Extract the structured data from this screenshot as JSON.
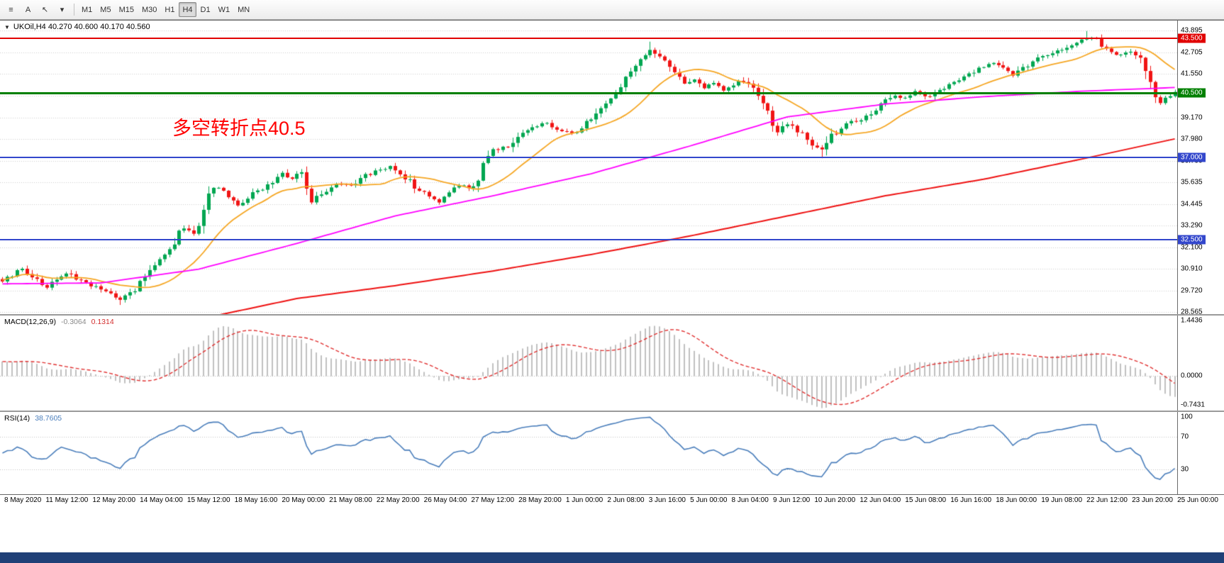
{
  "toolbar": {
    "tools": [
      {
        "name": "line-studies-icon",
        "glyph": "≡"
      },
      {
        "name": "text-tool-button",
        "glyph": "A"
      },
      {
        "name": "cursor-tool-button",
        "glyph": "↖"
      },
      {
        "name": "more-tools-dropdown",
        "glyph": "▾"
      }
    ],
    "timeframes": [
      "M1",
      "M5",
      "M15",
      "M30",
      "H1",
      "H4",
      "D1",
      "W1",
      "MN"
    ],
    "active_timeframe": "H4"
  },
  "chart_data": {
    "type": "candlestick",
    "symbol": "UKOil",
    "timeframe": "H4",
    "title": "UKOil,H4 40.270 40.600 40.170 40.560",
    "ohlc": {
      "open": "40.270",
      "high": "40.600",
      "low": "40.170",
      "close": "40.560"
    },
    "annotation": "多空转折点40.5",
    "num_bars": 240,
    "price_axis": [
      "43.895",
      "42.705",
      "41.550",
      "40.360",
      "39.170",
      "37.980",
      "36.790",
      "35.635",
      "34.445",
      "33.290",
      "32.100",
      "30.910",
      "29.720",
      "28.565"
    ],
    "price_range": [
      28.45,
      44.45
    ],
    "hlines": [
      {
        "label": "43.500",
        "value": 43.5,
        "color": "#e10000",
        "thickness": 2
      },
      {
        "label": "40.500",
        "value": 40.5,
        "color": "#008000",
        "thickness": 3
      },
      {
        "label": "37.000",
        "value": 37.0,
        "color": "#3347cc",
        "thickness": 2
      },
      {
        "label": "32.500",
        "value": 32.5,
        "color": "#3347cc",
        "thickness": 2
      }
    ],
    "close_path": [
      [
        0,
        30.3
      ],
      [
        4,
        30.9
      ],
      [
        9,
        29.9
      ],
      [
        13,
        30.7
      ],
      [
        17,
        30.1
      ],
      [
        22,
        29.6
      ],
      [
        24,
        29.25
      ],
      [
        27,
        29.8
      ],
      [
        30,
        30.8
      ],
      [
        34,
        32.0
      ],
      [
        37,
        33.2
      ],
      [
        39,
        32.9
      ],
      [
        42,
        34.9
      ],
      [
        43,
        35.4
      ],
      [
        46,
        34.9
      ],
      [
        48,
        34.4
      ],
      [
        51,
        35.0
      ],
      [
        53,
        35.3
      ],
      [
        57,
        36.1
      ],
      [
        59,
        35.8
      ],
      [
        61,
        36.2
      ],
      [
        63,
        34.6
      ],
      [
        65,
        35.0
      ],
      [
        68,
        35.6
      ],
      [
        71,
        35.4
      ],
      [
        74,
        36.0
      ],
      [
        77,
        36.3
      ],
      [
        79,
        36.5
      ],
      [
        81,
        36.2
      ],
      [
        84,
        35.4
      ],
      [
        87,
        34.8
      ],
      [
        89,
        34.6
      ],
      [
        91,
        35.2
      ],
      [
        94,
        35.5
      ],
      [
        96,
        35.3
      ],
      [
        98,
        36.5
      ],
      [
        100,
        37.3
      ],
      [
        103,
        37.6
      ],
      [
        105,
        38.2
      ],
      [
        108,
        38.6
      ],
      [
        110,
        38.9
      ],
      [
        113,
        38.5
      ],
      [
        116,
        38.3
      ],
      [
        118,
        38.6
      ],
      [
        121,
        39.3
      ],
      [
        124,
        40.2
      ],
      [
        126,
        40.9
      ],
      [
        129,
        41.9
      ],
      [
        132,
        42.8
      ],
      [
        134,
        42.4
      ],
      [
        137,
        41.6
      ],
      [
        139,
        41.0
      ],
      [
        141,
        41.3
      ],
      [
        143,
        40.8
      ],
      [
        145,
        41.0
      ],
      [
        147,
        40.6
      ],
      [
        150,
        41.2
      ],
      [
        152,
        40.9
      ],
      [
        154,
        40.4
      ],
      [
        156,
        39.3
      ],
      [
        158,
        38.3
      ],
      [
        160,
        38.8
      ],
      [
        163,
        38.2
      ],
      [
        165,
        37.6
      ],
      [
        167,
        37.4
      ],
      [
        169,
        38.2
      ],
      [
        171,
        38.6
      ],
      [
        173,
        38.9
      ],
      [
        176,
        39.2
      ],
      [
        178,
        39.6
      ],
      [
        180,
        40.1
      ],
      [
        182,
        40.4
      ],
      [
        184,
        40.2
      ],
      [
        186,
        40.6
      ],
      [
        189,
        40.3
      ],
      [
        191,
        40.6
      ],
      [
        193,
        40.9
      ],
      [
        195,
        41.2
      ],
      [
        197,
        41.5
      ],
      [
        199,
        41.9
      ],
      [
        202,
        42.1
      ],
      [
        204,
        41.8
      ],
      [
        206,
        41.5
      ],
      [
        208,
        41.9
      ],
      [
        210,
        42.2
      ],
      [
        212,
        42.5
      ],
      [
        215,
        42.8
      ],
      [
        217,
        43.0
      ],
      [
        219,
        43.2
      ],
      [
        221,
        43.5
      ],
      [
        223,
        43.4
      ],
      [
        225,
        42.9
      ],
      [
        227,
        42.6
      ],
      [
        230,
        42.8
      ],
      [
        232,
        42.3
      ],
      [
        234,
        41.0
      ],
      [
        236,
        40.0
      ],
      [
        238,
        40.3
      ],
      [
        239,
        40.56
      ]
    ],
    "spike_highs": [
      [
        132,
        43.3
      ],
      [
        221,
        43.88
      ]
    ],
    "spike_lows": [
      [
        24,
        28.95
      ],
      [
        167,
        36.95
      ],
      [
        236,
        39.85
      ]
    ],
    "ma_orange_period": 16,
    "ma_magenta_path": [
      [
        0,
        30.1
      ],
      [
        20,
        30.15
      ],
      [
        40,
        30.9
      ],
      [
        60,
        32.3
      ],
      [
        80,
        33.8
      ],
      [
        100,
        34.9
      ],
      [
        120,
        36.1
      ],
      [
        140,
        37.6
      ],
      [
        160,
        39.2
      ],
      [
        180,
        39.9
      ],
      [
        200,
        40.3
      ],
      [
        220,
        40.6
      ],
      [
        239,
        40.8
      ]
    ],
    "ma_red_path": [
      [
        30,
        27.6
      ],
      [
        60,
        29.3
      ],
      [
        80,
        30.0
      ],
      [
        100,
        30.8
      ],
      [
        120,
        31.7
      ],
      [
        140,
        32.7
      ],
      [
        160,
        33.8
      ],
      [
        180,
        34.9
      ],
      [
        200,
        35.8
      ],
      [
        220,
        36.9
      ],
      [
        239,
        38.0
      ]
    ],
    "time_labels": [
      "8 May 2020",
      "11 May 12:00",
      "12 May 20:00",
      "14 May 04:00",
      "15 May 12:00",
      "18 May 16:00",
      "20 May 00:00",
      "21 May 08:00",
      "22 May 20:00",
      "26 May 04:00",
      "27 May 12:00",
      "28 May 20:00",
      "1 Jun 00:00",
      "2 Jun 08:00",
      "3 Jun 16:00",
      "5 Jun 00:00",
      "8 Jun 04:00",
      "9 Jun 12:00",
      "10 Jun 20:00",
      "12 Jun 04:00",
      "15 Jun 08:00",
      "16 Jun 16:00",
      "18 Jun 00:00",
      "19 Jun 08:00",
      "22 Jun 12:00",
      "23 Jun 20:00",
      "25 Jun 00:00"
    ],
    "macd": {
      "label": "MACD(12,26,9)",
      "value_main": "-0.3064",
      "value_signal": "0.1314",
      "axis": [
        "1.4436",
        "0.0000",
        "-0.7431"
      ],
      "range": [
        -0.88,
        1.55
      ]
    },
    "rsi": {
      "label": "RSI(14)",
      "value": "38.7605",
      "axis": [
        "100",
        "70",
        "30"
      ],
      "levels": [
        70,
        30
      ],
      "range": [
        0,
        100
      ]
    }
  },
  "colors": {
    "grid": "#cfcfcf",
    "candle_up": "#00a651",
    "candle_down": "#f01414",
    "ma_orange": "#f5a623",
    "ma_magenta": "#ff00ff",
    "ma_red": "#ee1111",
    "macd_hist": "#c0c0c0",
    "macd_signal": "#e03131",
    "rsi_line": "#4a7ebb",
    "bottom_bar": "#204077"
  }
}
